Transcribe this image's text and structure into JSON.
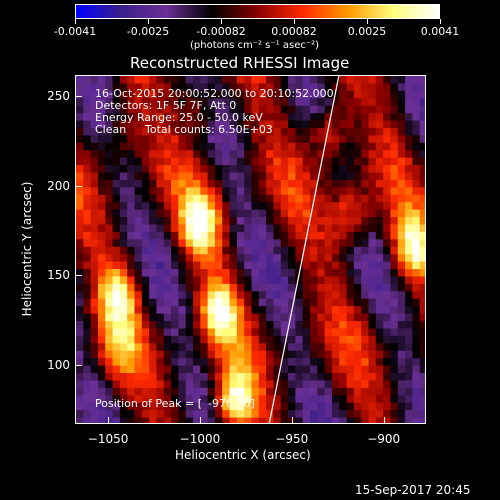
{
  "colorbar": {
    "tick_labels": [
      "-0.0041",
      "-0.0025",
      "-0.00082",
      "0.00082",
      "0.0025",
      "0.0041"
    ],
    "unit_label": "(photons cm⁻² s⁻¹ asec⁻²)",
    "colors": [
      "#0000ff",
      "#3b1f8a",
      "#6a2f94",
      "#000000",
      "#8b0000",
      "#ff2a00",
      "#ff9900",
      "#ffff80",
      "#ffffff"
    ]
  },
  "chart_data": {
    "type": "heatmap",
    "title": "Reconstructed RHESSI Image",
    "xlabel": "Heliocentric X (arcsec)",
    "ylabel": "Heliocentric Y (arcsec)",
    "xlim": [
      -1068,
      -877
    ],
    "ylim": [
      67,
      262
    ],
    "x_ticks": [
      -1050,
      -1000,
      -950,
      -900
    ],
    "y_ticks": [
      100,
      150,
      200,
      250
    ],
    "x_tick_labels": [
      "−1050",
      "−1000",
      "−950",
      "−900"
    ],
    "y_tick_labels": [
      "100",
      "150",
      "200",
      "250"
    ],
    "annotations": [
      "16-Oct-2015 20:00:52.000 to 20:10:52.000",
      "Detectors: 1F 5F 7F, Att 0",
      "Energy Range: 25.0 - 50.0 keV",
      "Clean",
      "Total counts: 6.50E+03"
    ],
    "peak_label": "Position of Peak = [",
    "peak_value": "-976.76]",
    "limb_line": [
      [
        -963,
        67
      ],
      [
        -925,
        262
      ]
    ],
    "sources": [
      {
        "x": -982,
        "y": 80,
        "level": 1.0
      },
      {
        "x": -1000,
        "y": 180,
        "level": 0.85
      },
      {
        "x": -990,
        "y": 130,
        "level": 0.8
      },
      {
        "x": -1045,
        "y": 140,
        "level": 0.75
      },
      {
        "x": -885,
        "y": 165,
        "level": 0.85
      },
      {
        "x": -930,
        "y": 230,
        "level": 0.6
      },
      {
        "x": -918,
        "y": 185,
        "level": 0.55
      },
      {
        "x": -1045,
        "y": 230,
        "level": 0.35
      },
      {
        "x": -1000,
        "y": 245,
        "level": 0.4
      },
      {
        "x": -1045,
        "y": 110,
        "level": 0.4
      }
    ]
  },
  "footer": {
    "timestamp": "15-Sep-2017 20:45"
  }
}
